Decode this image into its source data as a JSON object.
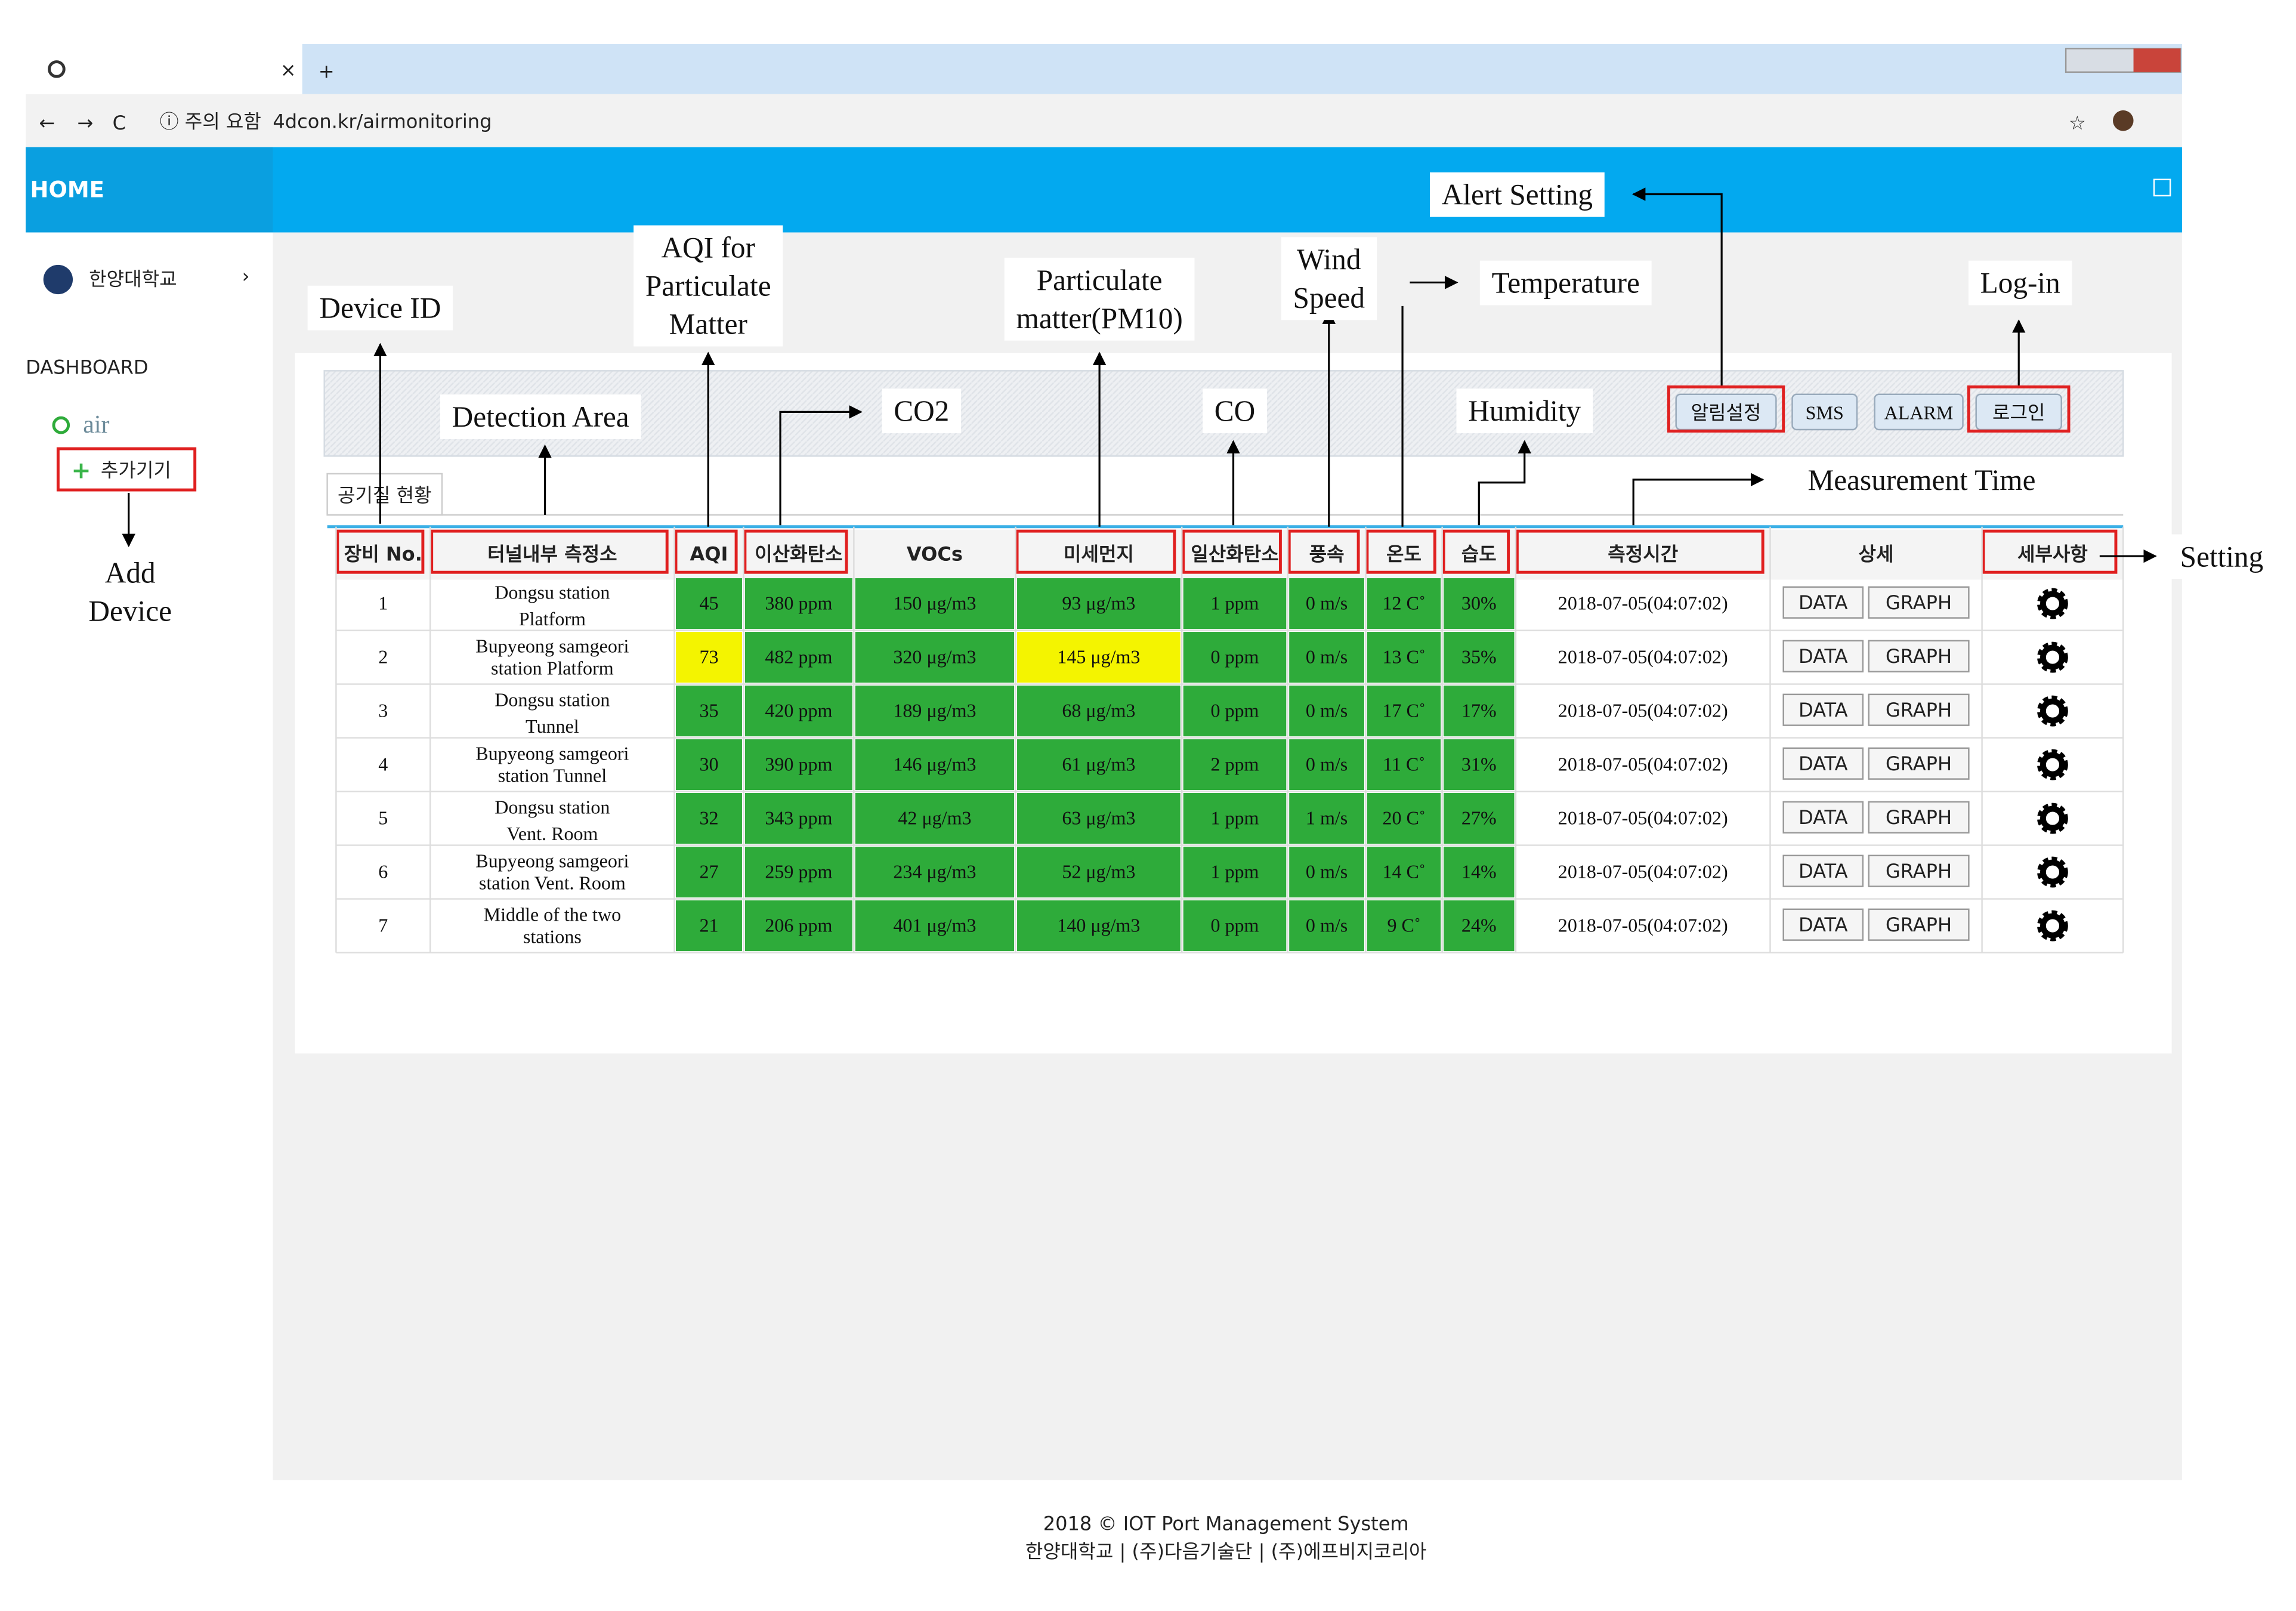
{
  "browser": {
    "tab_close": "×",
    "new_tab": "+",
    "security": "ⓘ 주의 요함",
    "url": "4dcon.kr/airmonitoring"
  },
  "nav": {
    "home": "HOME"
  },
  "sidebar": {
    "org": "한양대학교",
    "section": "DASHBOARD",
    "item": "air",
    "add": "추가기기"
  },
  "toolbar": {
    "buttons": [
      "알림설정",
      "SMS",
      "ALARM",
      "로그인"
    ]
  },
  "tab": "공기질 현황",
  "table": {
    "headers": [
      "장비 No.",
      "터널내부 측정소",
      "AQI",
      "이산화탄소",
      "VOCs",
      "미세먼지",
      "일산화탄소",
      "풍속",
      "온도",
      "습도",
      "측정시간",
      "상세",
      "세부사항"
    ],
    "buttons": [
      "DATA",
      "GRAPH"
    ],
    "good_color": "#2eab3a",
    "warn_color": "#f4f400",
    "rows": [
      {
        "no": "1",
        "area": [
          "Dongsu station",
          "Platform"
        ],
        "readings": [
          "45",
          "380 ppm",
          "150 μg/m3",
          "93 μg/m3",
          "1 ppm",
          "0 m/s",
          "12 C˚",
          "30%"
        ],
        "time": "2018-07-05(04:07:02)",
        "warn": []
      },
      {
        "no": "2",
        "area": [
          "Bupyeong samgeori",
          "station Platform"
        ],
        "readings": [
          "73",
          "482 ppm",
          "320 μg/m3",
          "145 μg/m3",
          "0 ppm",
          "0 m/s",
          "13 C˚",
          "35%"
        ],
        "time": "2018-07-05(04:07:02)",
        "warn": [
          0,
          3
        ]
      },
      {
        "no": "3",
        "area": [
          "Dongsu station",
          "Tunnel"
        ],
        "readings": [
          "35",
          "420 ppm",
          "189 μg/m3",
          "68 μg/m3",
          "0 ppm",
          "0 m/s",
          "17 C˚",
          "17%"
        ],
        "time": "2018-07-05(04:07:02)",
        "warn": []
      },
      {
        "no": "4",
        "area": [
          "Bupyeong samgeori",
          "station Tunnel"
        ],
        "readings": [
          "30",
          "390 ppm",
          "146 μg/m3",
          "61 μg/m3",
          "2 ppm",
          "0 m/s",
          "11 C˚",
          "31%"
        ],
        "time": "2018-07-05(04:07:02)",
        "warn": []
      },
      {
        "no": "5",
        "area": [
          "Dongsu station",
          "Vent. Room"
        ],
        "readings": [
          "32",
          "343 ppm",
          "42 μg/m3",
          "63 μg/m3",
          "1 ppm",
          "1 m/s",
          "20 C˚",
          "27%"
        ],
        "time": "2018-07-05(04:07:02)",
        "warn": []
      },
      {
        "no": "6",
        "area": [
          "Bupyeong samgeori",
          "station Vent. Room"
        ],
        "readings": [
          "27",
          "259 ppm",
          "234 μg/m3",
          "52 μg/m3",
          "1 ppm",
          "0 m/s",
          "14 C˚",
          "14%"
        ],
        "time": "2018-07-05(04:07:02)",
        "warn": []
      },
      {
        "no": "7",
        "area": [
          "Middle of the two",
          "stations"
        ],
        "readings": [
          "21",
          "206 ppm",
          "401 μg/m3",
          "140 μg/m3",
          "0 ppm",
          "0 m/s",
          "9 C˚",
          "24%"
        ],
        "time": "2018-07-05(04:07:02)",
        "warn": []
      }
    ]
  },
  "footer": {
    "lines": [
      "2018 © IOT Port Management System",
      "한양대학교 | (주)다음기술단 | (주)에프비지코리아"
    ]
  },
  "annotations": {
    "device_id": [
      "Device ID"
    ],
    "aqi": [
      "AQI for",
      "Particulate",
      "Matter"
    ],
    "pm": [
      "Particulate",
      "matter(PM10)"
    ],
    "wind": [
      "Wind",
      "Speed"
    ],
    "temperature": [
      "Temperature"
    ],
    "alert": [
      "Alert Setting"
    ],
    "login": [
      "Log-in"
    ],
    "area": [
      "Detection Area"
    ],
    "co2": [
      "CO2"
    ],
    "co": [
      "CO"
    ],
    "humidity": [
      "Humidity"
    ],
    "time": [
      "Measurement Time"
    ],
    "setting": [
      "Setting"
    ],
    "add": [
      "Add",
      "Device"
    ]
  }
}
